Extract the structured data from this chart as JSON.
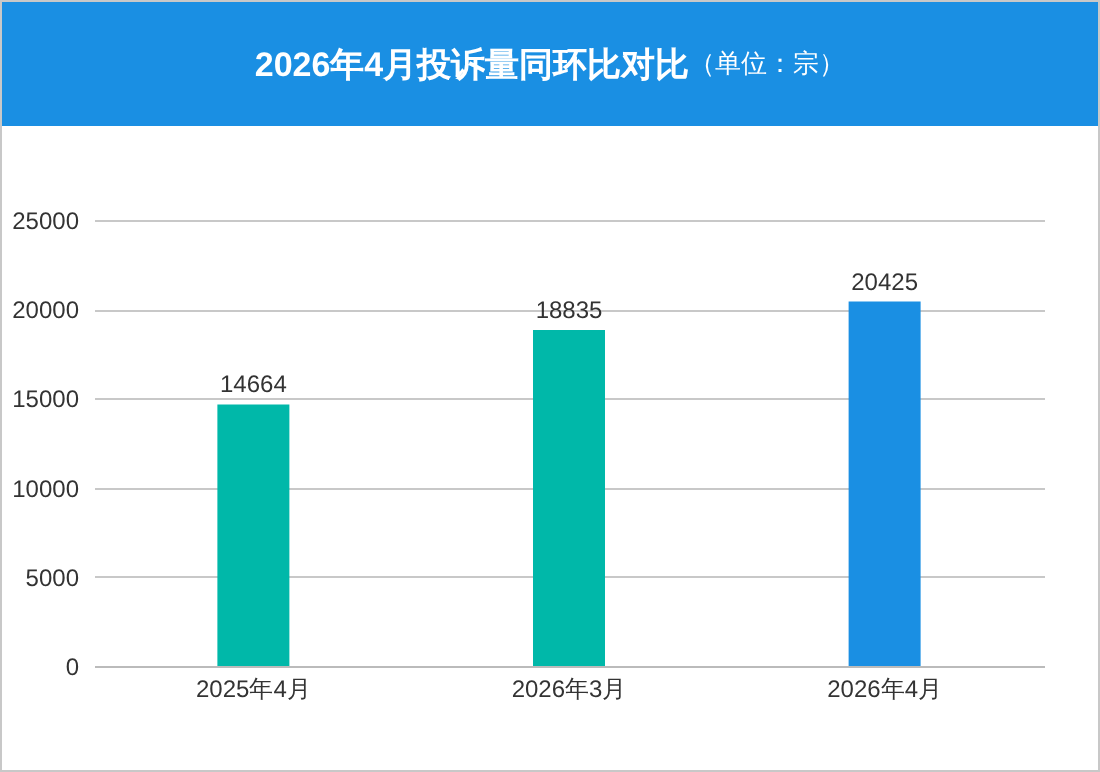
{
  "chart_data": {
    "type": "bar",
    "title": "2026年4月投诉量同环比对比",
    "subtitle": "（单位：宗）",
    "categories": [
      "2025年4月",
      "2026年3月",
      "2026年4月"
    ],
    "values": [
      14664,
      18835,
      20425
    ],
    "colors": [
      "#00b8a9",
      "#00b8a9",
      "#1a8fe3"
    ],
    "ylim": [
      0,
      25000
    ],
    "yticks": [
      0,
      5000,
      10000,
      15000,
      20000,
      25000
    ],
    "grid": "y",
    "data_labels": true
  }
}
